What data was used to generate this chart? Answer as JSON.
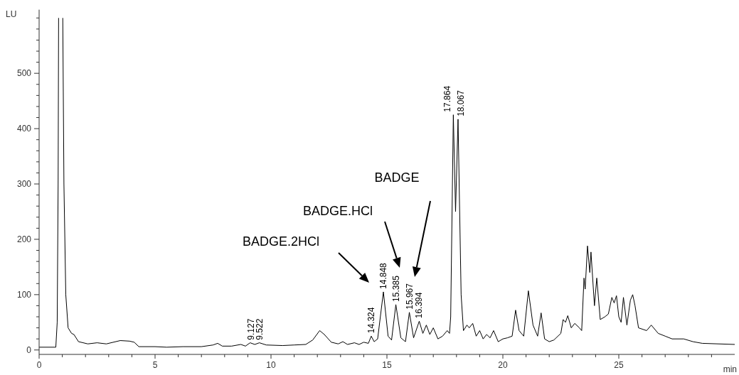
{
  "chart_data": {
    "type": "line",
    "xlabel": "min",
    "ylabel": "LU",
    "xlim": [
      0,
      30
    ],
    "ylim": [
      -8,
      615
    ],
    "xticks": [
      0,
      {
        "value": 1,
        "label": null
      },
      {
        "value": 2,
        "label": null
      },
      {
        "value": 3,
        "label": null
      },
      {
        "value": 4,
        "label": null
      },
      5,
      {
        "value": 6,
        "label": null
      },
      {
        "value": 7,
        "label": null
      },
      {
        "value": 8,
        "label": null
      },
      {
        "value": 9,
        "label": null
      },
      10,
      {
        "value": 11,
        "label": null
      },
      {
        "value": 12,
        "label": null
      },
      {
        "value": 13,
        "label": null
      },
      {
        "value": 14,
        "label": null
      },
      15,
      {
        "value": 16,
        "label": null
      },
      {
        "value": 17,
        "label": null
      },
      {
        "value": 18,
        "label": null
      },
      {
        "value": 19,
        "label": null
      },
      20,
      {
        "value": 21,
        "label": null
      },
      {
        "value": 22,
        "label": null
      },
      {
        "value": 23,
        "label": null
      },
      {
        "value": 24,
        "label": null
      },
      25,
      {
        "value": 26,
        "label": null
      },
      {
        "value": 27,
        "label": null
      },
      {
        "value": 28,
        "label": null
      },
      {
        "value": 29,
        "label": null
      }
    ],
    "yticks": [
      0,
      {
        "value": 20,
        "label": null
      },
      {
        "value": 40,
        "label": null
      },
      {
        "value": 60,
        "label": null
      },
      {
        "value": 80,
        "label": null
      },
      100,
      {
        "value": 120,
        "label": null
      },
      {
        "value": 140,
        "label": null
      },
      {
        "value": 160,
        "label": null
      },
      {
        "value": 180,
        "label": null
      },
      200,
      {
        "value": 220,
        "label": null
      },
      {
        "value": 240,
        "label": null
      },
      {
        "value": 260,
        "label": null
      },
      {
        "value": 280,
        "label": null
      },
      300,
      {
        "value": 320,
        "label": null
      },
      {
        "value": 340,
        "label": null
      },
      {
        "value": 360,
        "label": null
      },
      {
        "value": 380,
        "label": null
      },
      400,
      {
        "value": 420,
        "label": null
      },
      {
        "value": 440,
        "label": null
      },
      {
        "value": 460,
        "label": null
      },
      {
        "value": 480,
        "label": null
      },
      500,
      {
        "value": 520,
        "label": null
      },
      {
        "value": 540,
        "label": null
      },
      {
        "value": 560,
        "label": null
      },
      {
        "value": 580,
        "label": null
      },
      {
        "value": 600,
        "label": null
      }
    ],
    "grid": false,
    "marker": "none",
    "line_style": "solid",
    "series": [
      {
        "color": "#000000",
        "x": [
          0,
          0.72,
          0.78,
          0.82,
          0.84,
          0.93,
          1.02,
          1.07,
          1.15,
          1.25,
          1.4,
          1.5,
          1.7,
          1.9,
          2.1,
          2.5,
          2.9,
          3.5,
          3.9,
          4.1,
          4.3,
          5,
          5.5,
          6.2,
          7,
          7.5,
          7.7,
          7.9,
          8.3,
          8.7,
          8.9,
          9.1,
          9.3,
          9.5,
          9.8,
          10.5,
          11,
          11.5,
          11.8,
          12.1,
          12.3,
          12.6,
          12.9,
          13.1,
          13.3,
          13.6,
          13.8,
          14.0,
          14.2,
          14.324,
          14.45,
          14.6,
          14.848,
          15.05,
          15.2,
          15.385,
          15.6,
          15.8,
          15.967,
          16.15,
          16.394,
          16.55,
          16.7,
          16.85,
          17.0,
          17.2,
          17.4,
          17.6,
          17.7,
          17.75,
          17.864,
          17.96,
          18.067,
          18.2,
          18.3,
          18.45,
          18.55,
          18.7,
          18.85,
          19.0,
          19.15,
          19.3,
          19.45,
          19.6,
          19.8,
          20.0,
          20.2,
          20.4,
          20.55,
          20.7,
          20.9,
          21.1,
          21.3,
          21.5,
          21.65,
          21.8,
          22.0,
          22.2,
          22.5,
          22.6,
          22.7,
          22.8,
          22.95,
          23.1,
          23.3,
          23.4,
          23.5,
          23.55,
          23.65,
          23.75,
          23.8,
          23.95,
          24.05,
          24.2,
          24.4,
          24.55,
          24.7,
          24.8,
          24.9,
          25.0,
          25.1,
          25.2,
          25.35,
          25.5,
          25.6,
          25.7,
          25.85,
          26.2,
          26.4,
          26.7,
          27.0,
          27.3,
          27.8,
          28.2,
          28.6,
          30
        ],
        "values": [
          5,
          5,
          50,
          300,
          600,
          null,
          600,
          300,
          100,
          40,
          30,
          28,
          15,
          13,
          11,
          13,
          11,
          17,
          16,
          14,
          6,
          6,
          5,
          6,
          6,
          9,
          12,
          7,
          7,
          10,
          7,
          13,
          10,
          13,
          9,
          8,
          9,
          10,
          18,
          35,
          28,
          14,
          11,
          15,
          10,
          13,
          10,
          14,
          12,
          25,
          15,
          20,
          105,
          25,
          18,
          82,
          22,
          15,
          68,
          22,
          52,
          30,
          45,
          28,
          40,
          20,
          25,
          35,
          30,
          60,
          425,
          250,
          417,
          100,
          35,
          45,
          40,
          48,
          25,
          35,
          20,
          28,
          22,
          35,
          15,
          20,
          22,
          25,
          72,
          35,
          25,
          107,
          45,
          25,
          67,
          20,
          15,
          18,
          30,
          55,
          50,
          62,
          40,
          48,
          40,
          35,
          130,
          110,
          188,
          140,
          177,
          80,
          130,
          55,
          60,
          65,
          95,
          85,
          98,
          60,
          50,
          95,
          45,
          90,
          100,
          80,
          40,
          35,
          45,
          30,
          25,
          20,
          20,
          15,
          12,
          10
        ]
      }
    ],
    "annotations": [
      "BADGE.2HCl",
      "BADGE.HCl",
      "BADGE",
      {
        "text": "9.127",
        "x": 9.127,
        "y": 13
      },
      {
        "text": "9.522",
        "x": 9.522,
        "y": 13
      },
      {
        "text": "14.324",
        "x": 14.324,
        "y": 25
      },
      {
        "text": "14.848",
        "x": 14.848,
        "y": 105
      },
      {
        "text": "15.385",
        "x": 15.385,
        "y": 82
      },
      {
        "text": "15.967",
        "x": 15.967,
        "y": 68
      },
      {
        "text": "16.394",
        "x": 16.394,
        "y": 52
      },
      {
        "text": "17.864",
        "x": 17.864,
        "y": 425
      },
      {
        "text": "18.067",
        "x": 18.067,
        "y": 417
      }
    ]
  }
}
